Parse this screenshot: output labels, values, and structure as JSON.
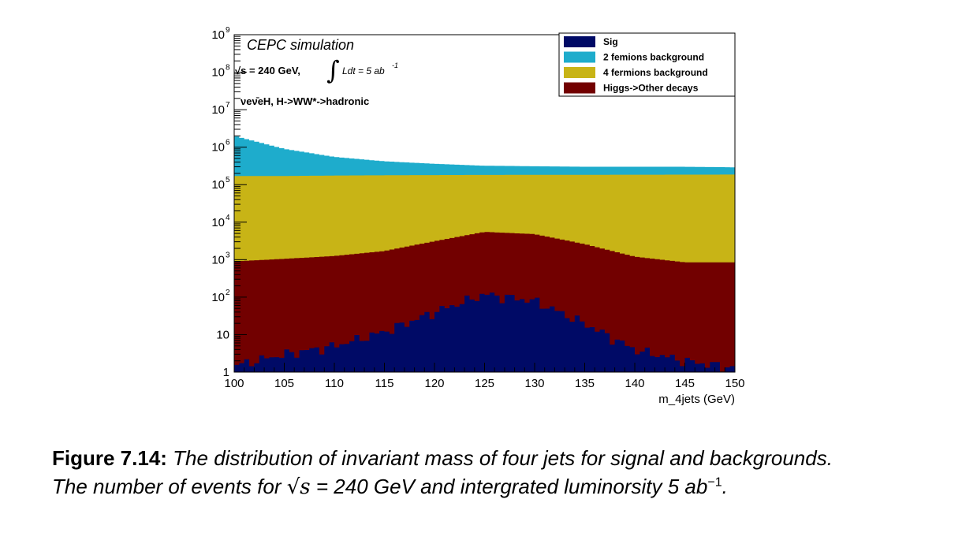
{
  "chart_data": {
    "type": "area",
    "stacked": true,
    "log_y": true,
    "xlabel": "m_4jets (GeV)",
    "ylabel": "",
    "xlim": [
      100,
      150
    ],
    "ylim": [
      1,
      1000000000
    ],
    "x_ticks": [
      "100",
      "105",
      "110",
      "115",
      "120",
      "125",
      "130",
      "135",
      "140",
      "145",
      "150"
    ],
    "y_ticks": [
      {
        "base": "1",
        "exp": ""
      },
      {
        "base": "10",
        "exp": ""
      },
      {
        "base": "10",
        "exp": "2"
      },
      {
        "base": "10",
        "exp": "3"
      },
      {
        "base": "10",
        "exp": "4"
      },
      {
        "base": "10",
        "exp": "5"
      },
      {
        "base": "10",
        "exp": "6"
      },
      {
        "base": "10",
        "exp": "7"
      },
      {
        "base": "10",
        "exp": "8"
      },
      {
        "base": "10",
        "exp": "9"
      }
    ],
    "x": [
      100,
      105,
      110,
      115,
      120,
      125,
      130,
      135,
      140,
      145,
      150
    ],
    "legend_position": "top-right",
    "series": [
      {
        "name": "Sig",
        "color": "#000a66",
        "totals": [
          1.5,
          3,
          5,
          12,
          40,
          120,
          80,
          20,
          4,
          2,
          1.3
        ]
      },
      {
        "name": "2 femions background",
        "color": "#1eaccc",
        "totals": [
          2000000,
          900000,
          550000,
          420000,
          360000,
          320000,
          310000,
          300000,
          300000,
          300000,
          290000
        ]
      },
      {
        "name": "4 fermions background",
        "color": "#c8b416",
        "totals": [
          170000,
          170000,
          175000,
          178000,
          180000,
          182000,
          183000,
          183000,
          184000,
          185000,
          186000
        ]
      },
      {
        "name": "Higgs->Other decays",
        "color": "#720000",
        "totals": [
          900,
          1050,
          1250,
          1700,
          3100,
          5500,
          4800,
          2600,
          1200,
          850,
          850
        ]
      }
    ],
    "annotations": {
      "title": "CEPC simulation",
      "energy": "√s = 240 GeV,",
      "lumi": "Ldt = 5 ab",
      "lumi_exp": "-1",
      "process": "νeν̄eH, H->WW*->hadronic"
    }
  },
  "caption": {
    "label": "Figure 7.14:",
    "line1": "The distribution of invariant mass of four jets for signal and backgrounds.",
    "line2_a": "The number of events for",
    "sqrt_s": "√s",
    "line2_b": "= 240 GeV and intergrated luminorsity 5 ab",
    "lumi_exp": "−1",
    "line2_end": "."
  }
}
